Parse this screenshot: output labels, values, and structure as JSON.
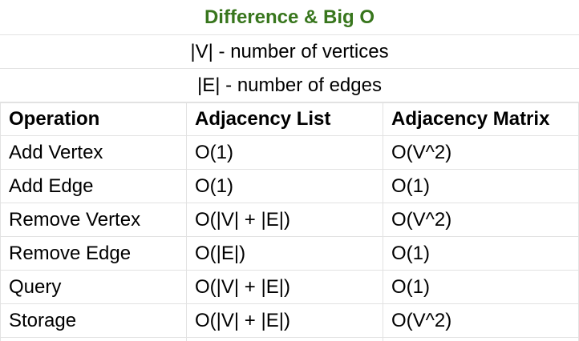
{
  "sheet": {
    "title": "Difference & Big O",
    "note_vertices": "|V| - number of vertices",
    "note_edges": "|E| - number of edges",
    "colors": {
      "title": "#38761d",
      "gridline": "#e2e2e2",
      "text": "#000000"
    },
    "table": {
      "headers": [
        "Operation",
        "Adjacency List",
        "Adjacency Matrix"
      ],
      "rows": [
        [
          "Add Vertex",
          "O(1)",
          "O(V^2)"
        ],
        [
          "Add Edge",
          "O(1)",
          "O(1)"
        ],
        [
          "Remove Vertex",
          "O(|V| + |E|)",
          "O(V^2)"
        ],
        [
          "Remove Edge",
          "O(|E|)",
          "O(1)"
        ],
        [
          "Query",
          "O(|V| + |E|)",
          "O(1)"
        ],
        [
          "Storage",
          "O(|V| + |E|)",
          "O(V^2)"
        ]
      ]
    }
  }
}
